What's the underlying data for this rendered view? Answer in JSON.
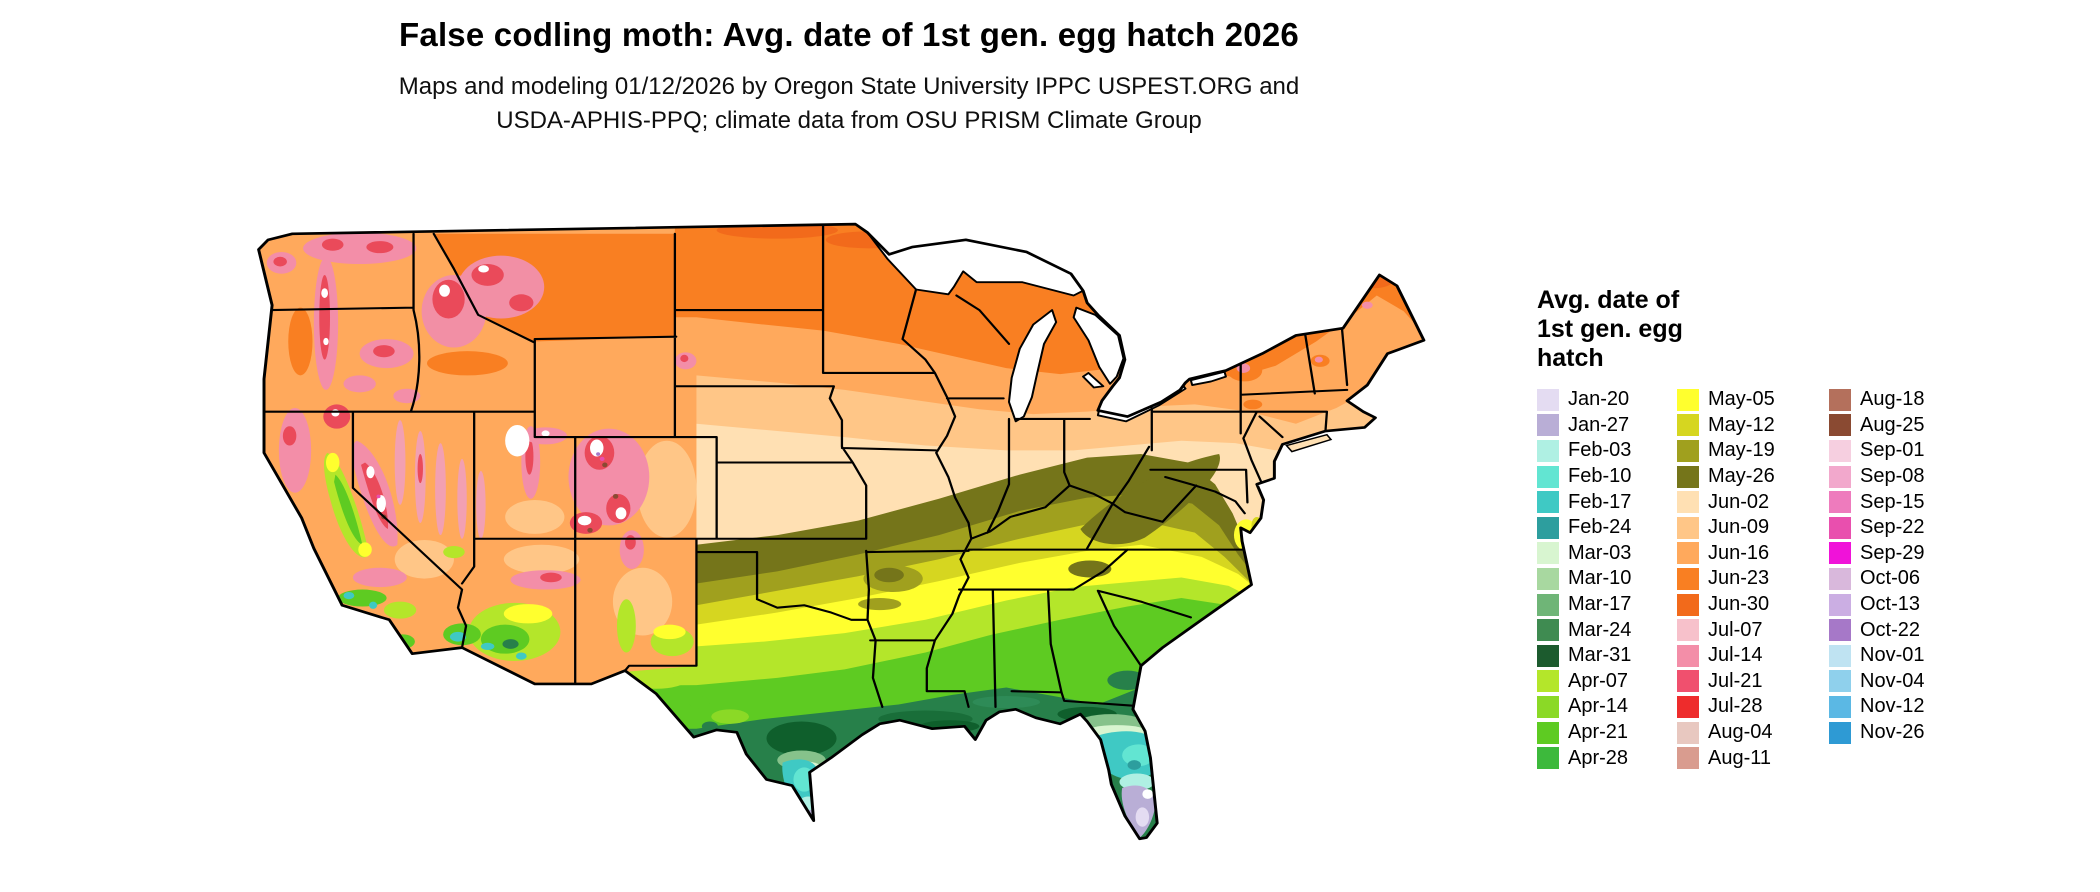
{
  "header": {
    "title": "False codling moth: Avg. date of 1st gen. egg hatch 2026",
    "subtitle_line1": "Maps and modeling 01/12/2026 by Oregon State University IPPC USPEST.ORG and",
    "subtitle_line2": "USDA-APHIS-PPQ; climate data from OSU PRISM Climate Group"
  },
  "legend": {
    "title_lines": [
      "Avg. date of",
      "1st gen. egg",
      "hatch"
    ],
    "columns": [
      [
        {
          "label": "Jan-20",
          "color": "#E4DCF2"
        },
        {
          "label": "Jan-27",
          "color": "#B9AED6"
        },
        {
          "label": "Feb-03",
          "color": "#AFF0E3"
        },
        {
          "label": "Feb-10",
          "color": "#62E5D2"
        },
        {
          "label": "Feb-17",
          "color": "#3FC9C4"
        },
        {
          "label": "Feb-24",
          "color": "#2D9E9E"
        },
        {
          "label": "Mar-03",
          "color": "#D8F5D0"
        },
        {
          "label": "Mar-10",
          "color": "#A8D8A0"
        },
        {
          "label": "Mar-17",
          "color": "#6FB577"
        },
        {
          "label": "Mar-24",
          "color": "#3F8B51"
        },
        {
          "label": "Mar-31",
          "color": "#1C5B2E"
        },
        {
          "label": "Apr-07",
          "color": "#B4E62A"
        },
        {
          "label": "Apr-14",
          "color": "#8BD926"
        },
        {
          "label": "Apr-21",
          "color": "#5ECB22"
        },
        {
          "label": "Apr-28",
          "color": "#3DB93C"
        }
      ],
      [
        {
          "label": "May-05",
          "color": "#FFFF2E"
        },
        {
          "label": "May-12",
          "color": "#D6D620"
        },
        {
          "label": "May-19",
          "color": "#A0A01E"
        },
        {
          "label": "May-26",
          "color": "#75751A"
        },
        {
          "label": "Jun-02",
          "color": "#FFE0B3"
        },
        {
          "label": "Jun-09",
          "color": "#FFC687"
        },
        {
          "label": "Jun-16",
          "color": "#FFA95C"
        },
        {
          "label": "Jun-23",
          "color": "#F97F22"
        },
        {
          "label": "Jun-30",
          "color": "#F26A1B"
        },
        {
          "label": "Jul-07",
          "color": "#F7C1CB"
        },
        {
          "label": "Jul-14",
          "color": "#F38EA8"
        },
        {
          "label": "Jul-21",
          "color": "#F0506E"
        },
        {
          "label": "Jul-28",
          "color": "#EE2C2C"
        },
        {
          "label": "Aug-04",
          "color": "#E8C8C0"
        },
        {
          "label": "Aug-11",
          "color": "#D99C8F"
        }
      ],
      [
        {
          "label": "Aug-18",
          "color": "#B4705C"
        },
        {
          "label": "Aug-25",
          "color": "#8A4A32"
        },
        {
          "label": "Sep-01",
          "color": "#F6CFE0"
        },
        {
          "label": "Sep-08",
          "color": "#F2A8CC"
        },
        {
          "label": "Sep-15",
          "color": "#EE7BBD"
        },
        {
          "label": "Sep-22",
          "color": "#E94FAE"
        },
        {
          "label": "Sep-29",
          "color": "#F012D9"
        },
        {
          "label": "Oct-06",
          "color": "#D9B8DC"
        },
        {
          "label": "Oct-13",
          "color": "#CBAEE3"
        },
        {
          "label": "Oct-22",
          "color": "#A678C8"
        },
        {
          "label": "Nov-01",
          "color": "#BFE3F2"
        },
        {
          "label": "Nov-04",
          "color": "#8FD0EC"
        },
        {
          "label": "Nov-12",
          "color": "#5BB8E4"
        },
        {
          "label": "Nov-26",
          "color": "#2E9AD4"
        }
      ]
    ]
  }
}
